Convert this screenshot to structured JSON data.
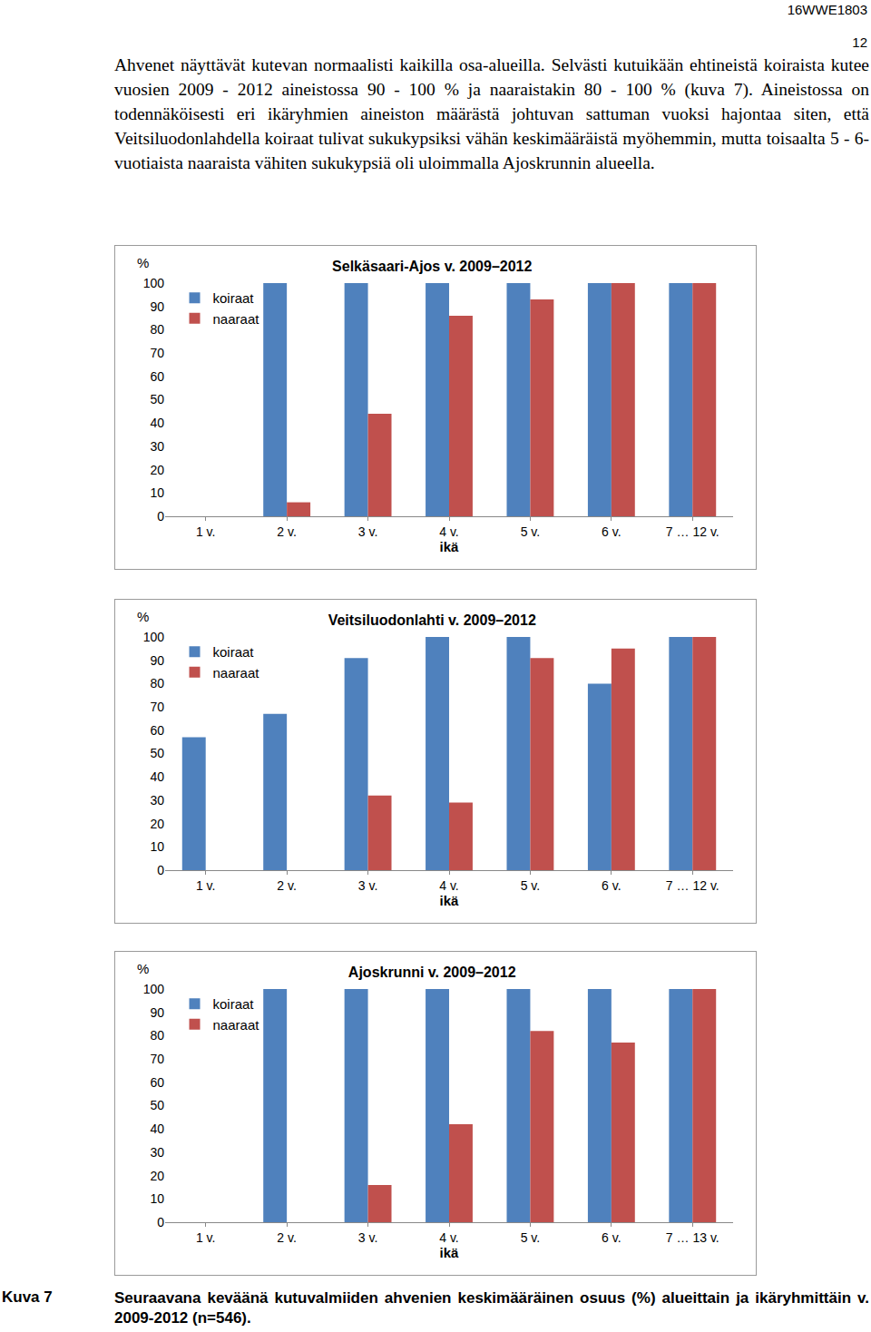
{
  "header": {
    "code": "16WWE1803",
    "page": "12"
  },
  "paragraph": "Ahvenet näyttävät kutevan normaalisti kaikilla osa-alueilla. Selvästi kutuikään ehtineistä koiraista kutee vuosien 2009 - 2012 aineistossa 90 - 100 % ja naaraistakin 80 - 100 % (kuva 7). Aineistossa on todennäköisesti eri ikäryhmien aineiston määrästä johtuvan sattuman vuoksi hajontaa siten, että Veitsiluodonlahdella koiraat tulivat sukukypsiksi vähän keskimääräistä myöhemmin, mutta toisaalta 5 - 6-vuotiaista naaraista vähiten sukukypsiä oli uloimmalla Ajoskrunnin alueella.",
  "chart_data": [
    {
      "type": "bar",
      "title": "Selkäsaari-Ajos v. 2009–2012",
      "xlabel": "ikä",
      "ylabel": "%",
      "categories": [
        "1 v.",
        "2 v.",
        "3 v.",
        "4 v.",
        "5 v.",
        "6 v.",
        "7 … 12 v."
      ],
      "series": [
        {
          "name": "koiraat",
          "color": "#4f81bd",
          "values": [
            null,
            100,
            100,
            100,
            100,
            100,
            100
          ]
        },
        {
          "name": "naaraat",
          "color": "#c0504d",
          "values": [
            null,
            6,
            44,
            86,
            93,
            100,
            100
          ]
        }
      ],
      "ylim": [
        0,
        100
      ],
      "yticks": [
        0,
        10,
        20,
        30,
        40,
        50,
        60,
        70,
        80,
        90,
        100
      ],
      "grid": false,
      "legend": "top left"
    },
    {
      "type": "bar",
      "title": "Veitsiluodonlahti v. 2009–2012",
      "xlabel": "ikä",
      "ylabel": "%",
      "categories": [
        "1 v.",
        "2 v.",
        "3 v.",
        "4 v.",
        "5 v.",
        "6 v.",
        "7 … 12 v."
      ],
      "series": [
        {
          "name": "koiraat",
          "color": "#4f81bd",
          "values": [
            57,
            67,
            91,
            100,
            100,
            80,
            100
          ]
        },
        {
          "name": "naaraat",
          "color": "#c0504d",
          "values": [
            null,
            null,
            32,
            29,
            91,
            95,
            100
          ]
        }
      ],
      "ylim": [
        0,
        100
      ],
      "yticks": [
        0,
        10,
        20,
        30,
        40,
        50,
        60,
        70,
        80,
        90,
        100
      ],
      "grid": false,
      "legend": "top left"
    },
    {
      "type": "bar",
      "title": "Ajoskrunni v. 2009–2012",
      "xlabel": "ikä",
      "ylabel": "%",
      "categories": [
        "1 v.",
        "2 v.",
        "3 v.",
        "4 v.",
        "5 v.",
        "6 v.",
        "7 … 13 v."
      ],
      "series": [
        {
          "name": "koiraat",
          "color": "#4f81bd",
          "values": [
            null,
            100,
            100,
            100,
            100,
            100,
            100
          ]
        },
        {
          "name": "naaraat",
          "color": "#c0504d",
          "values": [
            null,
            null,
            16,
            42,
            82,
            77,
            100
          ]
        }
      ],
      "ylim": [
        0,
        100
      ],
      "yticks": [
        0,
        10,
        20,
        30,
        40,
        50,
        60,
        70,
        80,
        90,
        100
      ],
      "grid": false,
      "legend": "top left"
    }
  ],
  "caption": {
    "label": "Kuva 7",
    "text": "Seuraavana keväänä kutuvalmiiden ahvenien keskimääräinen osuus (%) alueittain ja ikäryhmittäin v. 2009-2012 (n=546)."
  }
}
